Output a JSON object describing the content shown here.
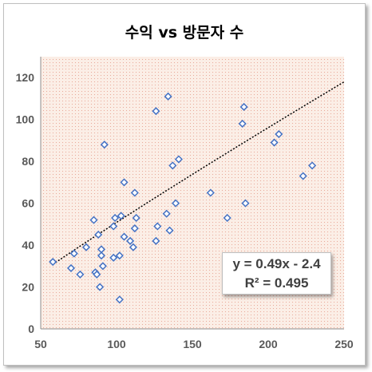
{
  "chart_data": {
    "type": "scatter",
    "title": "수익 vs 방문자 수",
    "xlim": [
      50,
      250
    ],
    "ylim": [
      0,
      130
    ],
    "x_ticks": [
      50,
      100,
      150,
      200,
      250
    ],
    "y_ticks": [
      0,
      20,
      40,
      60,
      80,
      100,
      120
    ],
    "grid": false,
    "marker": "diamond-open",
    "colors": {
      "marker": "#4472c4",
      "trendline": "#000000",
      "plot_bg": "#fbeee6"
    },
    "points": [
      {
        "x": 58,
        "y": 32
      },
      {
        "x": 70,
        "y": 29
      },
      {
        "x": 72,
        "y": 36
      },
      {
        "x": 76,
        "y": 26
      },
      {
        "x": 80,
        "y": 39
      },
      {
        "x": 85,
        "y": 52
      },
      {
        "x": 86,
        "y": 27
      },
      {
        "x": 87,
        "y": 26
      },
      {
        "x": 88,
        "y": 45
      },
      {
        "x": 89,
        "y": 20
      },
      {
        "x": 90,
        "y": 35
      },
      {
        "x": 90,
        "y": 38
      },
      {
        "x": 91,
        "y": 30
      },
      {
        "x": 92,
        "y": 88
      },
      {
        "x": 98,
        "y": 34
      },
      {
        "x": 98,
        "y": 49
      },
      {
        "x": 99,
        "y": 53
      },
      {
        "x": 102,
        "y": 14
      },
      {
        "x": 102,
        "y": 35
      },
      {
        "x": 103,
        "y": 54
      },
      {
        "x": 105,
        "y": 44
      },
      {
        "x": 105,
        "y": 70
      },
      {
        "x": 109,
        "y": 42
      },
      {
        "x": 111,
        "y": 39
      },
      {
        "x": 112,
        "y": 48
      },
      {
        "x": 112,
        "y": 65
      },
      {
        "x": 113,
        "y": 53
      },
      {
        "x": 126,
        "y": 42
      },
      {
        "x": 126,
        "y": 104
      },
      {
        "x": 127,
        "y": 49
      },
      {
        "x": 133,
        "y": 55
      },
      {
        "x": 134,
        "y": 111
      },
      {
        "x": 135,
        "y": 47
      },
      {
        "x": 137,
        "y": 78
      },
      {
        "x": 139,
        "y": 60
      },
      {
        "x": 141,
        "y": 81
      },
      {
        "x": 162,
        "y": 65
      },
      {
        "x": 173,
        "y": 53
      },
      {
        "x": 183,
        "y": 98
      },
      {
        "x": 184,
        "y": 106
      },
      {
        "x": 185,
        "y": 60
      },
      {
        "x": 204,
        "y": 89
      },
      {
        "x": 207,
        "y": 93
      },
      {
        "x": 223,
        "y": 73
      },
      {
        "x": 229,
        "y": 78
      }
    ],
    "trendline": {
      "type": "power",
      "from_x": 58,
      "to_x": 250,
      "equation": "y = 0.49x - 2.4",
      "r2": "R² = 0.495"
    }
  }
}
